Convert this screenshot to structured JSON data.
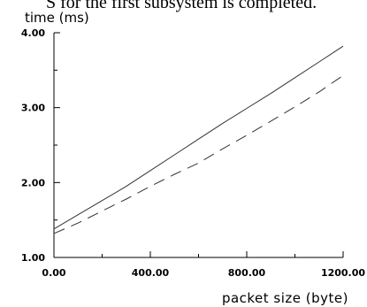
{
  "caption_fragment": "S for the first subsystem is completed.",
  "chart_data": {
    "type": "line",
    "ylabel": "time (ms)",
    "xlabel": "packet size (byte)",
    "xlim": [
      0,
      1200
    ],
    "ylim": [
      1.0,
      4.0
    ],
    "x_ticks": [
      "0.00",
      "400.00",
      "800.00",
      "1200.00"
    ],
    "y_ticks": [
      "1.00",
      "2.00",
      "3.00",
      "4.00"
    ],
    "x_tick_values": [
      0,
      400,
      800,
      1200
    ],
    "y_tick_values": [
      1.0,
      2.0,
      3.0,
      4.0
    ],
    "x_minor_step": 200,
    "y_minor_step": 0.5,
    "grid": false,
    "legend": "none",
    "series": [
      {
        "line_style": "solid",
        "color": "#333333",
        "x": [
          0,
          100,
          200,
          300,
          400,
          500,
          600,
          700,
          800,
          900,
          1000,
          1100,
          1200
        ],
        "y": [
          1.38,
          1.57,
          1.76,
          1.95,
          2.16,
          2.37,
          2.58,
          2.79,
          2.99,
          3.19,
          3.4,
          3.61,
          3.82
        ]
      },
      {
        "line_style": "dashed",
        "color": "#333333",
        "x": [
          0,
          100,
          200,
          300,
          400,
          500,
          600,
          700,
          800,
          900,
          1000,
          1100,
          1200
        ],
        "y": [
          1.32,
          1.46,
          1.62,
          1.78,
          1.95,
          2.11,
          2.26,
          2.45,
          2.63,
          2.82,
          3.01,
          3.21,
          3.43
        ]
      }
    ]
  }
}
